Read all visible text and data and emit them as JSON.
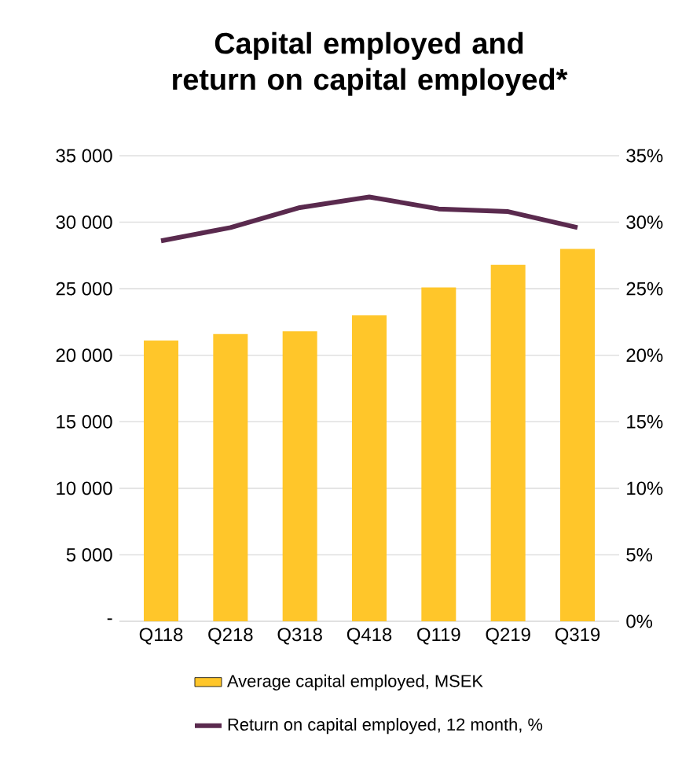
{
  "chart_data": {
    "type": "bar",
    "title": "Capital employed and return on capital employed*",
    "categories": [
      "Q118",
      "Q218",
      "Q318",
      "Q418",
      "Q119",
      "Q219",
      "Q319"
    ],
    "series": [
      {
        "name": "Average capital employed, MSEK",
        "color": "#ffc62a",
        "values": [
          21100,
          21600,
          21800,
          23000,
          25100,
          26800,
          28000
        ]
      },
      {
        "name": "Return on capital employed, 12 month, %",
        "type": "line",
        "axis": "y2",
        "color": "#5a2a4e",
        "marker": "none",
        "line_style": "solid",
        "values": [
          28.6,
          29.6,
          31.1,
          31.9,
          31.0,
          30.8,
          29.6
        ]
      }
    ],
    "ylim": [
      0,
      35000
    ],
    "yticks": [
      {
        "value": 0,
        "label": "-"
      },
      {
        "value": 5000,
        "label": "5 000"
      },
      {
        "value": 10000,
        "label": "10 000"
      },
      {
        "value": 15000,
        "label": "15 000"
      },
      {
        "value": 20000,
        "label": "20 000"
      },
      {
        "value": 25000,
        "label": "25 000"
      },
      {
        "value": 30000,
        "label": "30 000"
      },
      {
        "value": 35000,
        "label": "35 000"
      }
    ],
    "y2lim": [
      0,
      35
    ],
    "y2ticks": [
      {
        "value": 0,
        "label": "0%"
      },
      {
        "value": 5,
        "label": "5%"
      },
      {
        "value": 10,
        "label": "10%"
      },
      {
        "value": 15,
        "label": "15%"
      },
      {
        "value": 20,
        "label": "20%"
      },
      {
        "value": 25,
        "label": "25%"
      },
      {
        "value": 30,
        "label": "30%"
      },
      {
        "value": 35,
        "label": "35%"
      }
    ],
    "grid": "y",
    "legend": "bottom"
  }
}
